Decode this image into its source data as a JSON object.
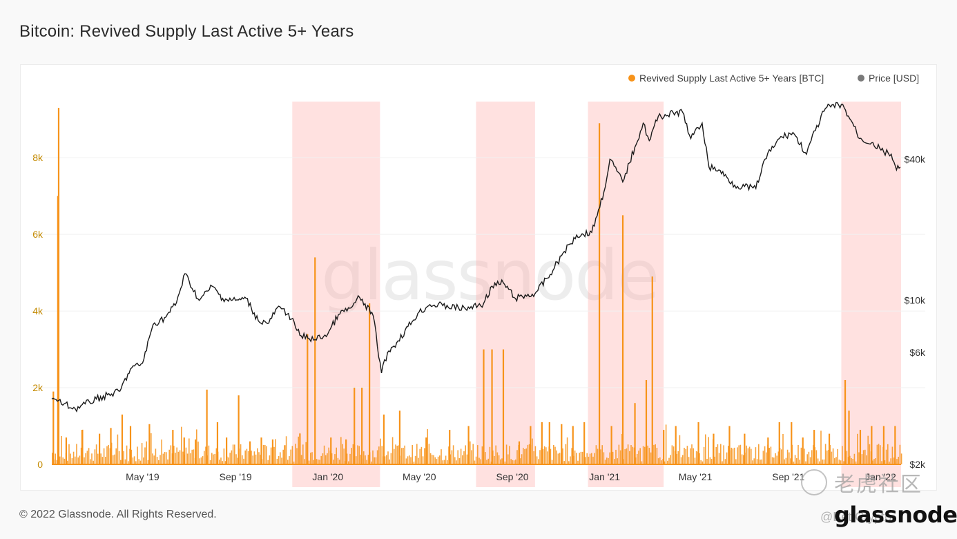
{
  "title": "Bitcoin: Revived Supply Last Active 5+ Years",
  "copyright": "© 2022 Glassnode. All Rights Reserved.",
  "footer_logo": "glassnode",
  "watermark": "glassnode",
  "credit": "@Bet Crypto",
  "tiger_logo_text": "老虎社区",
  "colors": {
    "supply": "#f7931a",
    "price": "#1a1a1a",
    "highlight": "rgba(255,170,165,0.35)",
    "left_axis": "#c48a00"
  },
  "chart_data": {
    "type": "bar",
    "title": "Bitcoin: Revived Supply Last Active 5+ Years",
    "x_ticks": [
      "May '19",
      "Sep '19",
      "Jan '20",
      "May '20",
      "Sep '20",
      "Jan '21",
      "May '21",
      "Sep '21",
      "Jan '22"
    ],
    "x_range": [
      "2019-01-01",
      "2022-01-28"
    ],
    "y_left": {
      "label": "Revived Supply Last Active 5+ Years [BTC]",
      "ticks": [
        "0",
        "2k",
        "4k",
        "6k",
        "8k"
      ],
      "range": [
        0,
        9500
      ]
    },
    "y_right": {
      "label": "Price [USD]",
      "scale": "log",
      "ticks": [
        "$2k",
        "$6k",
        "$10k",
        "$40k"
      ],
      "range": [
        2000,
        69000
      ]
    },
    "legend": {
      "position": "top-right",
      "entries": [
        "Revived Supply Last Active 5+ Years [BTC]",
        "Price [USD]"
      ]
    },
    "highlighted_periods": [
      [
        "2019-11-15",
        "2020-03-10"
      ],
      [
        "2020-07-15",
        "2020-10-01"
      ],
      [
        "2020-12-10",
        "2021-03-20"
      ],
      [
        "2021-11-10",
        "2022-01-28"
      ]
    ],
    "series": [
      {
        "name": "Revived Supply Last Active 5+ Years [BTC]",
        "type": "bar",
        "spikes": [
          [
            "2019-01-03",
            1900
          ],
          [
            "2019-01-09",
            7000
          ],
          [
            "2019-01-10",
            9300
          ],
          [
            "2019-01-20",
            700
          ],
          [
            "2019-02-10",
            900
          ],
          [
            "2019-03-05",
            800
          ],
          [
            "2019-03-20",
            950
          ],
          [
            "2019-04-04",
            1300
          ],
          [
            "2019-04-15",
            1000
          ],
          [
            "2019-05-10",
            1050
          ],
          [
            "2019-06-10",
            900
          ],
          [
            "2019-06-25",
            700
          ],
          [
            "2019-07-10",
            650
          ],
          [
            "2019-07-25",
            1950
          ],
          [
            "2019-08-08",
            1100
          ],
          [
            "2019-08-20",
            700
          ],
          [
            "2019-09-05",
            1800
          ],
          [
            "2019-09-20",
            600
          ],
          [
            "2019-10-05",
            700
          ],
          [
            "2019-10-20",
            650
          ],
          [
            "2019-11-05",
            500
          ],
          [
            "2019-11-25",
            800
          ],
          [
            "2019-12-05",
            3400
          ],
          [
            "2019-12-15",
            5400
          ],
          [
            "2020-01-05",
            700
          ],
          [
            "2020-01-25",
            650
          ],
          [
            "2020-02-05",
            2000
          ],
          [
            "2020-02-15",
            2000
          ],
          [
            "2020-02-25",
            4200
          ],
          [
            "2020-03-15",
            1300
          ],
          [
            "2020-04-05",
            1400
          ],
          [
            "2020-05-10",
            700
          ],
          [
            "2020-06-10",
            900
          ],
          [
            "2020-07-05",
            1000
          ],
          [
            "2020-07-25",
            3000
          ],
          [
            "2020-08-05",
            3000
          ],
          [
            "2020-08-20",
            3000
          ],
          [
            "2020-09-10",
            600
          ],
          [
            "2020-09-25",
            1000
          ],
          [
            "2020-10-10",
            1100
          ],
          [
            "2020-10-20",
            1100
          ],
          [
            "2020-11-05",
            1050
          ],
          [
            "2020-11-20",
            1000
          ],
          [
            "2020-12-05",
            1100
          ],
          [
            "2020-12-25",
            8900
          ],
          [
            "2021-01-10",
            1000
          ],
          [
            "2021-01-25",
            6500
          ],
          [
            "2021-02-10",
            1600
          ],
          [
            "2021-02-25",
            2200
          ],
          [
            "2021-03-05",
            4900
          ],
          [
            "2021-03-20",
            900
          ],
          [
            "2021-04-05",
            1000
          ],
          [
            "2021-05-05",
            1100
          ],
          [
            "2021-05-25",
            800
          ],
          [
            "2021-06-15",
            1000
          ],
          [
            "2021-07-05",
            800
          ],
          [
            "2021-08-05",
            700
          ],
          [
            "2021-08-20",
            1100
          ],
          [
            "2021-09-05",
            1100
          ],
          [
            "2021-09-20",
            700
          ],
          [
            "2021-10-05",
            900
          ],
          [
            "2021-10-25",
            800
          ],
          [
            "2021-11-15",
            2200
          ],
          [
            "2021-11-20",
            1400
          ],
          [
            "2021-12-05",
            900
          ],
          [
            "2021-12-20",
            1000
          ],
          [
            "2022-01-05",
            1000
          ],
          [
            "2022-01-20",
            1000
          ]
        ]
      },
      {
        "name": "Price [USD]",
        "type": "line",
        "points": [
          [
            "2019-01-01",
            3800
          ],
          [
            "2019-02-01",
            3450
          ],
          [
            "2019-03-01",
            3800
          ],
          [
            "2019-04-01",
            4100
          ],
          [
            "2019-04-15",
            5100
          ],
          [
            "2019-05-01",
            5400
          ],
          [
            "2019-05-15",
            7900
          ],
          [
            "2019-06-01",
            8500
          ],
          [
            "2019-06-15",
            9800
          ],
          [
            "2019-06-26",
            13000
          ],
          [
            "2019-07-15",
            10000
          ],
          [
            "2019-08-01",
            11500
          ],
          [
            "2019-08-15",
            10200
          ],
          [
            "2019-09-01",
            10000
          ],
          [
            "2019-09-15",
            10200
          ],
          [
            "2019-10-01",
            8200
          ],
          [
            "2019-10-15",
            8000
          ],
          [
            "2019-10-26",
            9300
          ],
          [
            "2019-11-10",
            8800
          ],
          [
            "2019-11-25",
            7100
          ],
          [
            "2019-12-15",
            6800
          ],
          [
            "2020-01-01",
            7200
          ],
          [
            "2020-01-15",
            8700
          ],
          [
            "2020-02-01",
            9300
          ],
          [
            "2020-02-12",
            10300
          ],
          [
            "2020-03-01",
            8600
          ],
          [
            "2020-03-12",
            4900
          ],
          [
            "2020-03-20",
            6000
          ],
          [
            "2020-04-01",
            6600
          ],
          [
            "2020-04-29",
            8800
          ],
          [
            "2020-05-15",
            9600
          ],
          [
            "2020-06-01",
            9500
          ],
          [
            "2020-07-01",
            9200
          ],
          [
            "2020-07-25",
            9700
          ],
          [
            "2020-08-05",
            11500
          ],
          [
            "2020-08-20",
            11900
          ],
          [
            "2020-09-05",
            10200
          ],
          [
            "2020-10-01",
            10700
          ],
          [
            "2020-10-21",
            12900
          ],
          [
            "2020-11-05",
            15500
          ],
          [
            "2020-11-25",
            19000
          ],
          [
            "2020-12-15",
            19500
          ],
          [
            "2020-12-31",
            29000
          ],
          [
            "2021-01-08",
            40000
          ],
          [
            "2021-01-25",
            32000
          ],
          [
            "2021-02-10",
            45000
          ],
          [
            "2021-02-21",
            57000
          ],
          [
            "2021-03-01",
            48000
          ],
          [
            "2021-03-13",
            61000
          ],
          [
            "2021-04-14",
            63500
          ],
          [
            "2021-04-25",
            49000
          ],
          [
            "2021-05-10",
            57000
          ],
          [
            "2021-05-19",
            37000
          ],
          [
            "2021-06-01",
            36000
          ],
          [
            "2021-06-22",
            31000
          ],
          [
            "2021-07-20",
            30000
          ],
          [
            "2021-08-01",
            40000
          ],
          [
            "2021-08-20",
            49000
          ],
          [
            "2021-09-07",
            52000
          ],
          [
            "2021-09-25",
            42000
          ],
          [
            "2021-10-01",
            48000
          ],
          [
            "2021-10-20",
            66000
          ],
          [
            "2021-11-10",
            68500
          ],
          [
            "2021-11-25",
            57000
          ],
          [
            "2021-12-04",
            49000
          ],
          [
            "2021-12-20",
            47000
          ],
          [
            "2022-01-05",
            43000
          ],
          [
            "2022-01-15",
            42000
          ],
          [
            "2022-01-22",
            36000
          ],
          [
            "2022-01-27",
            37000
          ]
        ]
      }
    ]
  }
}
